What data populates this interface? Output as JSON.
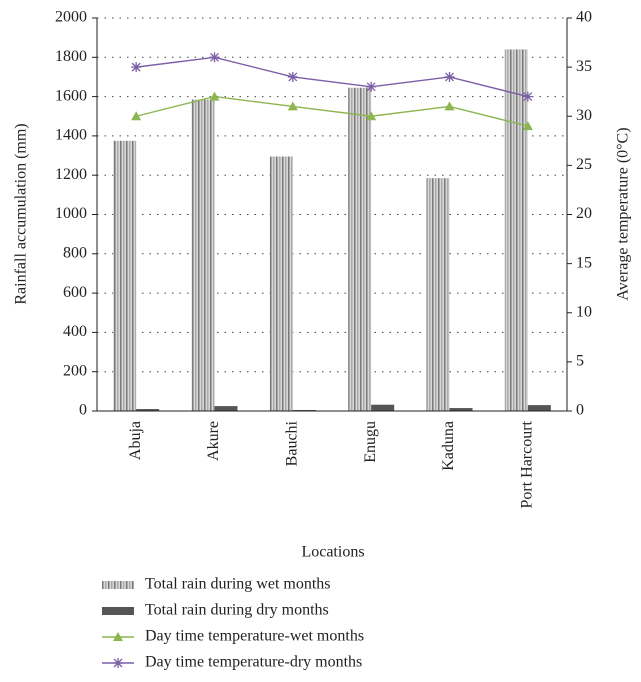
{
  "chart_data": {
    "type": "bar",
    "categories": [
      "Abuja",
      "Akure",
      "Bauchi",
      "Enugu",
      "Kaduna",
      "Port Harcourt"
    ],
    "x_label": "Locations",
    "y_label": "Rainfall accumulation (mm)",
    "y2_label": "Average temperature (0°C)",
    "ylim": [
      0,
      2000
    ],
    "yticks": [
      0,
      200,
      400,
      600,
      800,
      1000,
      1200,
      1400,
      1600,
      1800,
      2000
    ],
    "y2lim": [
      0,
      40
    ],
    "y2ticks": [
      0,
      5,
      10,
      15,
      20,
      25,
      30,
      35,
      40
    ],
    "grid": true,
    "series": [
      {
        "name": "Total rain during wet months",
        "type": "bar",
        "color": "#9a9a9a",
        "values": [
          1375,
          1585,
          1295,
          1645,
          1185,
          1840
        ]
      },
      {
        "name": "Total rain during dry months",
        "type": "bar",
        "color": "#555555",
        "values": [
          10,
          25,
          5,
          32,
          15,
          30
        ]
      },
      {
        "name": "Day time temperature-wet months",
        "type": "line",
        "marker": "triangle",
        "axis": "y2",
        "color": "#8db550",
        "values": [
          30,
          32,
          31,
          30,
          31,
          29
        ]
      },
      {
        "name": "Day time temperature-dry months",
        "type": "line",
        "marker": "star",
        "axis": "y2",
        "color": "#7b5ea7",
        "values": [
          35,
          36,
          34,
          33,
          34,
          32
        ]
      }
    ]
  }
}
